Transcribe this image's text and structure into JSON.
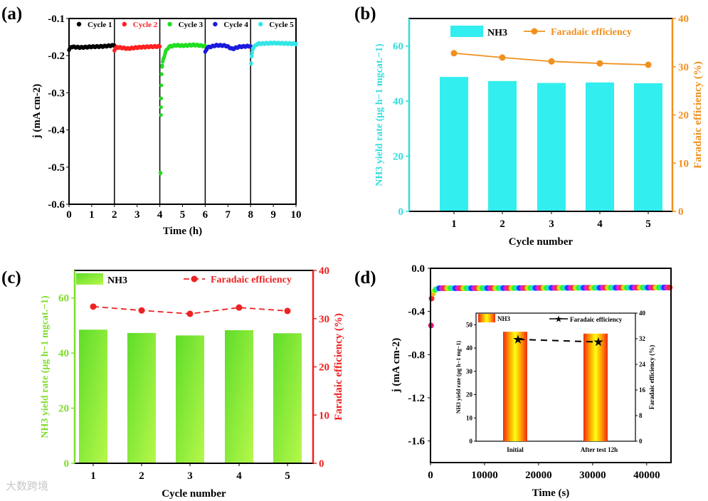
{
  "watermark": "大数跨境",
  "chart_data": [
    {
      "panel": "(a)",
      "type": "scatter",
      "xlabel": "Time (h)",
      "ylabel": "j (mA cm-2)",
      "xlim": [
        0,
        10
      ],
      "ylim": [
        -0.6,
        -0.1
      ],
      "xticks": [
        "0",
        "1",
        "2",
        "3",
        "4",
        "5",
        "6",
        "7",
        "8",
        "9",
        "10"
      ],
      "yticks": [
        "-0.6",
        "-0.5",
        "-0.4",
        "-0.3",
        "-0.2",
        "-0.1"
      ],
      "series": [
        {
          "name": "Cycle 1",
          "color": "#000000",
          "points": [
            [
              0,
              -0.185
            ],
            [
              0.1,
              -0.176
            ],
            [
              0.5,
              -0.178
            ],
            [
              1,
              -0.176
            ],
            [
              1.5,
              -0.175
            ],
            [
              2,
              -0.172
            ]
          ]
        },
        {
          "name": "Cycle 2",
          "color": "#ff2020",
          "points": [
            [
              2,
              -0.185
            ],
            [
              2.1,
              -0.177
            ],
            [
              2.6,
              -0.181
            ],
            [
              3,
              -0.178
            ],
            [
              3.5,
              -0.176
            ],
            [
              4,
              -0.175
            ]
          ]
        },
        {
          "name": "Cycle 3",
          "color": "#22dd22",
          "points": [
            [
              4.03,
              -0.515
            ],
            [
              4.05,
              -0.36
            ],
            [
              4.06,
              -0.315
            ],
            [
              4.07,
              -0.28
            ],
            [
              4.08,
              -0.25
            ],
            [
              4.1,
              -0.23
            ],
            [
              4.15,
              -0.21
            ],
            [
              4.25,
              -0.19
            ],
            [
              4.4,
              -0.176
            ],
            [
              4.7,
              -0.172
            ],
            [
              5,
              -0.173
            ],
            [
              5.5,
              -0.171
            ],
            [
              6,
              -0.174
            ]
          ]
        },
        {
          "name": "Cycle 4",
          "color": "#1a1add",
          "points": [
            [
              6,
              -0.19
            ],
            [
              6.1,
              -0.178
            ],
            [
              6.5,
              -0.172
            ],
            [
              6.9,
              -0.173
            ],
            [
              7.2,
              -0.182
            ],
            [
              7.5,
              -0.176
            ],
            [
              8,
              -0.174
            ]
          ]
        },
        {
          "name": "Cycle 5",
          "color": "#33e6e6",
          "points": [
            [
              8.02,
              -0.222
            ],
            [
              8.05,
              -0.2
            ],
            [
              8.1,
              -0.18
            ],
            [
              8.3,
              -0.168
            ],
            [
              9,
              -0.166
            ],
            [
              10,
              -0.168
            ]
          ]
        }
      ]
    },
    {
      "panel": "(b)",
      "type": "bar",
      "categories": [
        "1",
        "2",
        "3",
        "4",
        "5"
      ],
      "xlabel": "Cycle number",
      "ylabel_left": "NH3 yield rate (μg h−1 mgcat.−1)",
      "ylabel_right": "Faradaic efficiency (%)",
      "ylim_left": [
        0,
        70
      ],
      "ylim_right": [
        0,
        40
      ],
      "yticks_left": [
        "0",
        "20",
        "40",
        "60"
      ],
      "yticks_right": [
        "0",
        "10",
        "20",
        "30",
        "40"
      ],
      "series": [
        {
          "name": "NH3",
          "type": "bar",
          "color": "#33eeee",
          "values": [
            48.8,
            47.3,
            46.6,
            46.8,
            46.5
          ]
        },
        {
          "name": "Faradaic efficiency",
          "type": "line",
          "color": "#f0901e",
          "values": [
            32.8,
            31.9,
            31.1,
            30.7,
            30.4
          ]
        }
      ]
    },
    {
      "panel": "(c)",
      "type": "bar",
      "categories": [
        "1",
        "2",
        "3",
        "4",
        "5"
      ],
      "xlabel": "Cycle number",
      "ylabel_left": "NH3 yield rate (μg h−1 mgcat.−1)",
      "ylabel_right": "Faradaic efficiency (%)",
      "ylim_left": [
        0,
        70
      ],
      "ylim_right": [
        0,
        40
      ],
      "yticks_left": [
        "0",
        "20",
        "40",
        "60"
      ],
      "yticks_right": [
        "0",
        "10",
        "20",
        "30",
        "40"
      ],
      "series": [
        {
          "name": "NH3",
          "type": "bar",
          "color": "#88ee33",
          "values": [
            48.5,
            47.3,
            46.4,
            48.3,
            47.2
          ]
        },
        {
          "name": "Faradaic efficiency",
          "type": "line",
          "color": "#ee2222",
          "values": [
            32.5,
            31.7,
            31.0,
            32.3,
            31.6
          ]
        }
      ]
    },
    {
      "panel": "(d)",
      "type": "scatter",
      "xlabel": "Time (s)",
      "ylabel": "j (mA cm-2)",
      "xlim": [
        0,
        44500
      ],
      "ylim": [
        -1.8,
        0
      ],
      "xticks": [
        "0",
        "10000",
        "20000",
        "30000",
        "40000"
      ],
      "yticks": [
        "0.0",
        "-0.4",
        "-0.8",
        "-1.2",
        "-1.6"
      ],
      "points": [
        [
          100,
          -0.53
        ],
        [
          200,
          -0.28
        ],
        [
          400,
          -0.24
        ],
        [
          800,
          -0.2
        ],
        [
          1500,
          -0.185
        ],
        [
          5000,
          -0.185
        ],
        [
          20000,
          -0.182
        ],
        [
          44000,
          -0.178
        ]
      ],
      "inset": {
        "type": "bar",
        "categories": [
          "Initial",
          "After test 12h"
        ],
        "ylabel_left": "NH3 yield rate (μg h−1 mg−1)",
        "ylabel_right": "Faradaic efficiency (%)",
        "ylim_left": [
          0,
          55
        ],
        "ylim_right": [
          0,
          40
        ],
        "yticks_left": [
          "0",
          "10",
          "20",
          "30",
          "40",
          "50"
        ],
        "yticks_right": [
          "0",
          "8",
          "16",
          "24",
          "32",
          "40"
        ],
        "series": [
          {
            "name": "NH3",
            "type": "bar",
            "values": [
              47.0,
              46.2
            ]
          },
          {
            "name": "Faradaic efficiency",
            "type": "line",
            "values": [
              31.8,
              31.0
            ]
          }
        ]
      }
    }
  ]
}
